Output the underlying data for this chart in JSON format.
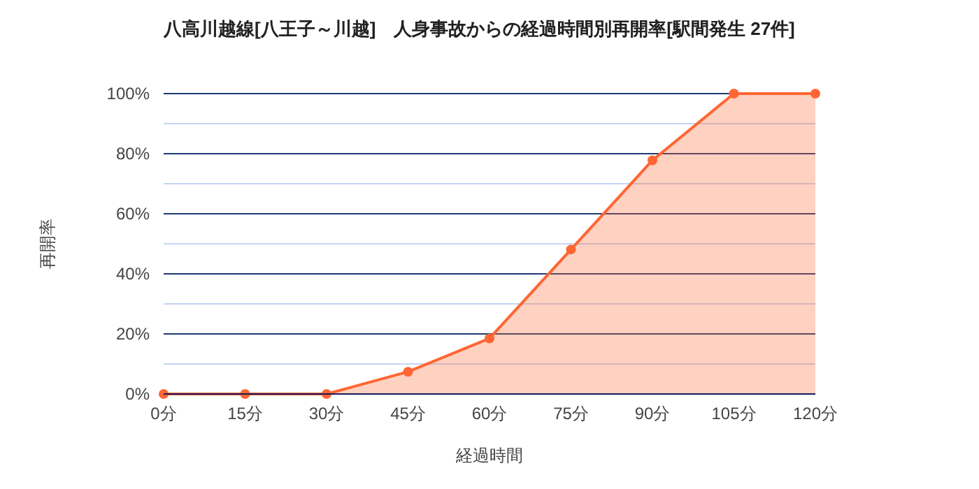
{
  "chart_data": {
    "type": "area",
    "title": "八高川越線[八王子～川越]　人身事故からの経過時間別再開率[駅間発生 27件]",
    "xlabel": "経過時間",
    "ylabel": "再開率",
    "categories": [
      "0分",
      "15分",
      "30分",
      "45分",
      "60分",
      "75分",
      "90分",
      "105分",
      "120分"
    ],
    "series": [
      {
        "color": "#ff6633",
        "values": [
          0,
          0,
          0,
          7.4,
          18.5,
          48.1,
          77.8,
          100,
          100
        ]
      }
    ],
    "ylim": [
      0,
      100
    ],
    "yticks": [
      {
        "value": 0,
        "label": "0%"
      },
      {
        "value": 10,
        "label": null
      },
      {
        "value": 20,
        "label": "20%"
      },
      {
        "value": 30,
        "label": null
      },
      {
        "value": 40,
        "label": "40%"
      },
      {
        "value": 50,
        "label": null
      },
      {
        "value": 60,
        "label": "60%"
      },
      {
        "value": 70,
        "label": null
      },
      {
        "value": 80,
        "label": "80%"
      },
      {
        "value": 90,
        "label": null
      },
      {
        "value": 100,
        "label": "100%"
      }
    ],
    "grid": true,
    "marker": "circle"
  }
}
